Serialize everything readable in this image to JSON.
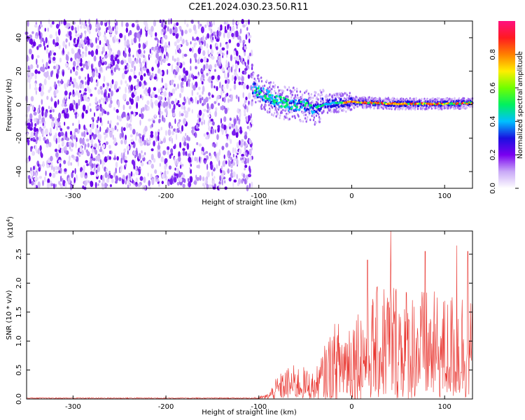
{
  "title": "C2E1.2024.030.23.50.R11",
  "chart_data": [
    {
      "type": "heatmap",
      "xlabel": "Height of straight line (km)",
      "ylabel": "Frequency (Hz)",
      "xlim": [
        -350,
        130
      ],
      "ylim": [
        -50,
        50
      ],
      "x_ticks": [
        -300,
        -200,
        -100,
        0,
        100
      ],
      "y_ticks": [
        -40,
        -20,
        0,
        20,
        40
      ],
      "noise_region_x": [
        -350,
        -107
      ],
      "signal_track": [
        {
          "x": -107,
          "y": 10
        },
        {
          "x": -100,
          "y": 8
        },
        {
          "x": -90,
          "y": 5
        },
        {
          "x": -80,
          "y": 2
        },
        {
          "x": -70,
          "y": 1
        },
        {
          "x": -60,
          "y": 0
        },
        {
          "x": -50,
          "y": -1
        },
        {
          "x": -40,
          "y": -2
        },
        {
          "x": -30,
          "y": 0
        },
        {
          "x": -20,
          "y": 1
        },
        {
          "x": 0,
          "y": 1.5
        },
        {
          "x": 50,
          "y": 0.5
        },
        {
          "x": 100,
          "y": 0.5
        },
        {
          "x": 130,
          "y": 1
        }
      ],
      "colorbar": {
        "label": "Normalized spectral amplitude",
        "range": [
          0,
          1
        ],
        "ticks": [
          "0.0",
          "0.2",
          "0.4",
          "0.6",
          "0.8"
        ],
        "colormap": [
          "#ffffff",
          "#c9a9f7",
          "#7a00f0",
          "#1a10e0",
          "#00c0ff",
          "#00f060",
          "#70ff00",
          "#ffee00",
          "#ff8000",
          "#ff1a20",
          "#ff1080"
        ]
      }
    },
    {
      "type": "line",
      "xlabel": "Height of straight line (km)",
      "ylabel": "SNR (10 * v/v)",
      "y_multiplier": "(x10",
      "y_multiplier_exp": "4",
      "y_multiplier_close": ")",
      "xlim": [
        -350,
        130
      ],
      "ylim": [
        0,
        2.9
      ],
      "x_ticks": [
        -300,
        -200,
        -100,
        0,
        100
      ],
      "y_ticks": [
        "0.0",
        "0.5",
        "1.0",
        "1.5",
        "2.0",
        "2.5"
      ],
      "line_color": "#e8302a",
      "envelope": [
        {
          "x": -350,
          "y": 0.02
        },
        {
          "x": -110,
          "y": 0.02
        },
        {
          "x": -100,
          "y": 0.04
        },
        {
          "x": -90,
          "y": 0.1
        },
        {
          "x": -80,
          "y": 0.4
        },
        {
          "x": -70,
          "y": 0.55
        },
        {
          "x": -60,
          "y": 0.6
        },
        {
          "x": -50,
          "y": 0.55
        },
        {
          "x": -40,
          "y": 0.45
        },
        {
          "x": -30,
          "y": 0.9
        },
        {
          "x": -20,
          "y": 1.3
        },
        {
          "x": -10,
          "y": 1.4
        },
        {
          "x": 0,
          "y": 1.6
        },
        {
          "x": 20,
          "y": 1.8
        },
        {
          "x": 40,
          "y": 2.2
        },
        {
          "x": 60,
          "y": 2.0
        },
        {
          "x": 80,
          "y": 1.9
        },
        {
          "x": 100,
          "y": 1.8
        },
        {
          "x": 120,
          "y": 2.0
        },
        {
          "x": 130,
          "y": 1.7
        }
      ],
      "peaks": [
        {
          "x": 42,
          "y": 2.9
        },
        {
          "x": 113,
          "y": 2.65
        },
        {
          "x": 125,
          "y": 2.55
        },
        {
          "x": 79,
          "y": 2.55
        },
        {
          "x": 17,
          "y": 2.4
        }
      ]
    }
  ]
}
